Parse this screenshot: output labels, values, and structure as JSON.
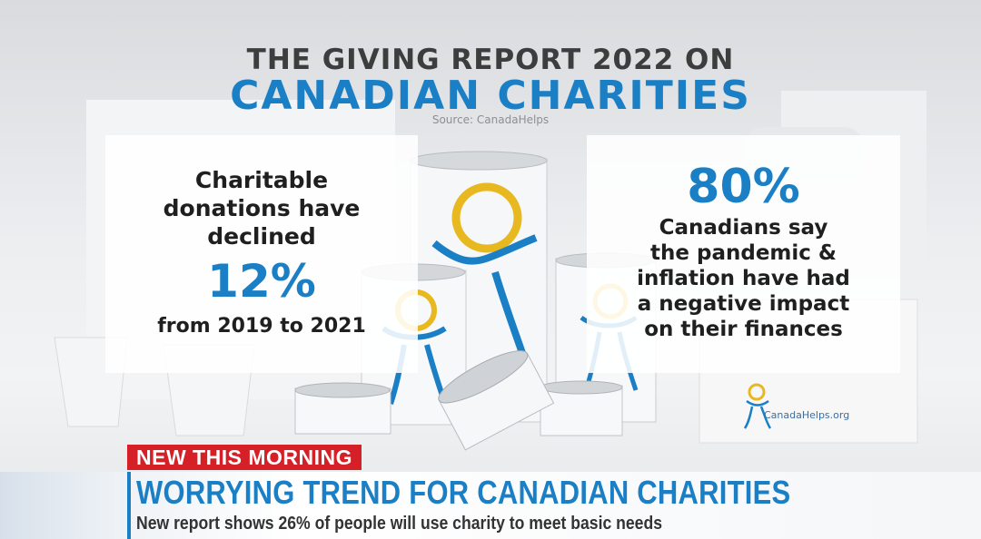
{
  "infographic": {
    "title_line1": "THE GIVING REPORT 2022 ON",
    "title_line2": "CANADIAN CHARITIES",
    "source": "Source: CanadaHelps",
    "left_panel": {
      "text_top_lines": [
        "Charitable",
        "donations have",
        "declined"
      ],
      "big_figure": "12%",
      "text_bottom": "from 2019 to 2021"
    },
    "right_panel": {
      "big_figure": "80%",
      "text_lines": [
        "Canadians say",
        "the pandemic &",
        "inflation have had",
        "a negative impact",
        "on their finances"
      ]
    },
    "logo_text": "CanadaHelps.org"
  },
  "lower_third": {
    "badge": "NEW THIS MORNING",
    "headline": "WORRYING TREND FOR CANADIAN CHARITIES",
    "subline": "New report shows 26% of people will use charity to meet basic needs"
  },
  "colors": {
    "brand_blue": "#1a7fc4",
    "badge_red": "#d62027",
    "logo_yellow": "#e8b820"
  }
}
